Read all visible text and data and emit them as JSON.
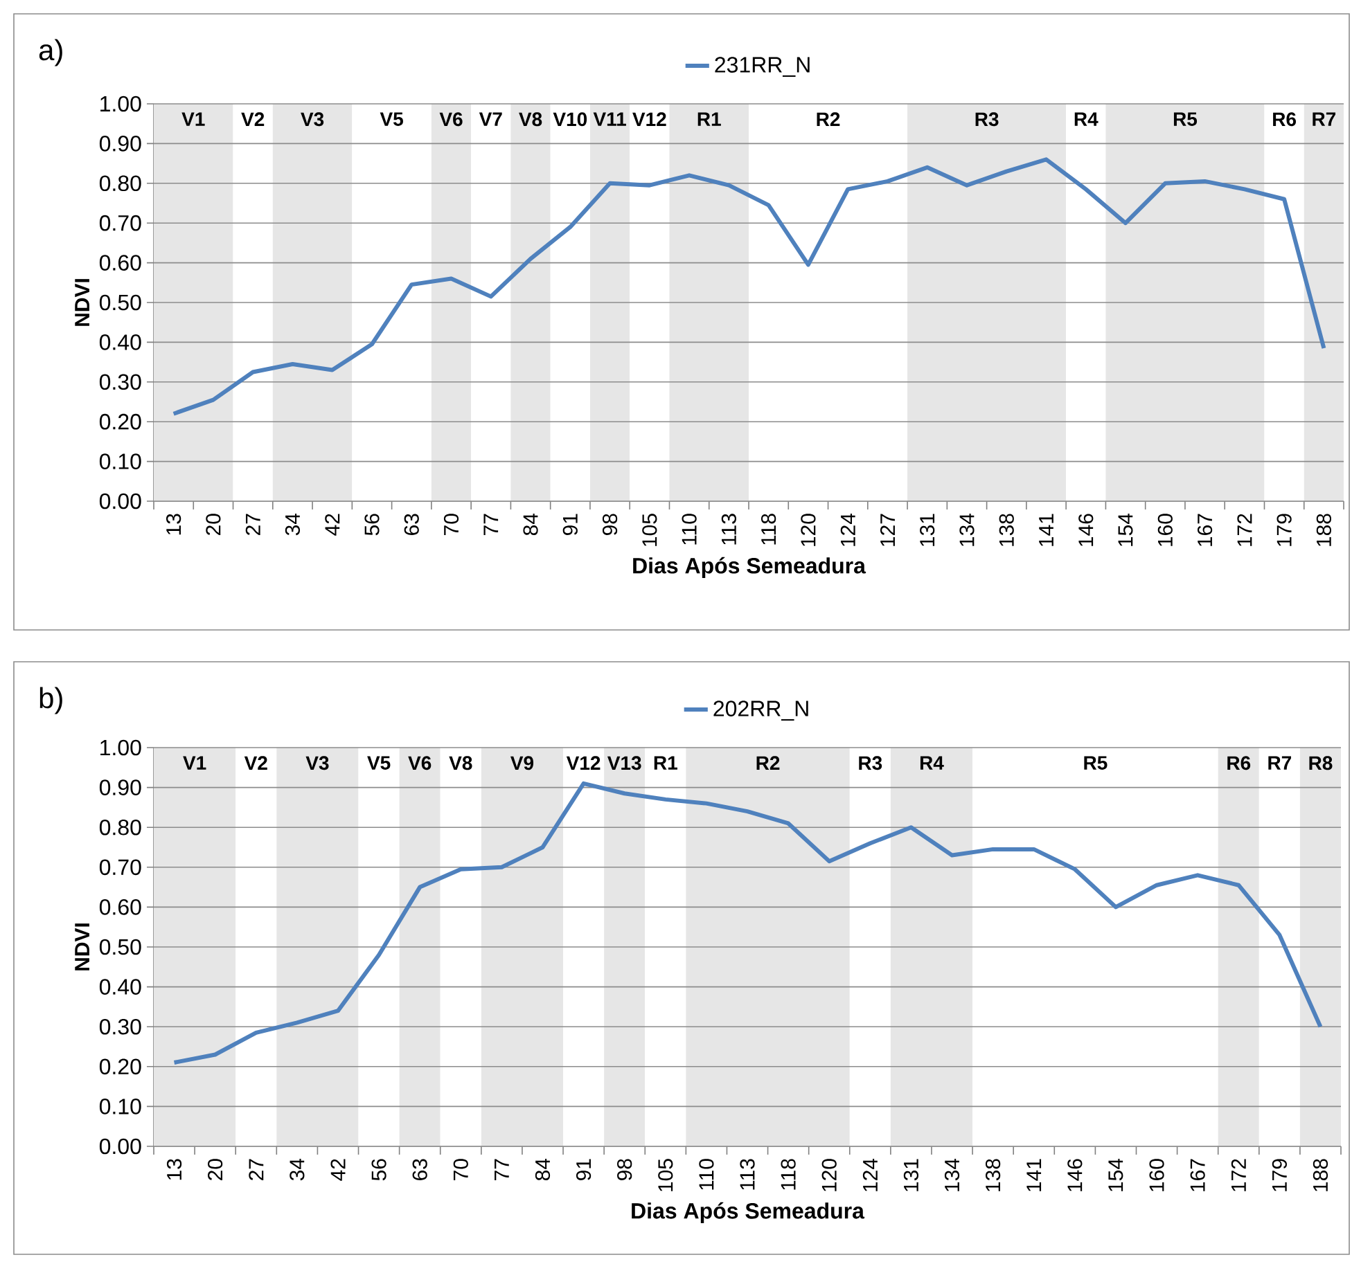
{
  "chart_data": [
    {
      "type": "line",
      "title": "a)",
      "xlabel": "Dias Após Semeadura",
      "ylabel": "NDVI",
      "categories": [
        "13",
        "20",
        "27",
        "34",
        "42",
        "56",
        "63",
        "70",
        "77",
        "84",
        "91",
        "98",
        "105",
        "110",
        "113",
        "118",
        "120",
        "124",
        "127",
        "131",
        "134",
        "138",
        "141",
        "146",
        "154",
        "160",
        "167",
        "172",
        "179",
        "188"
      ],
      "series": [
        {
          "name": "231RR_N",
          "color": "#4f81bd",
          "values": [
            0.22,
            0.255,
            0.325,
            0.345,
            0.33,
            0.395,
            0.545,
            0.56,
            0.515,
            0.61,
            0.69,
            0.8,
            0.795,
            0.82,
            0.795,
            0.745,
            0.595,
            0.785,
            0.805,
            0.84,
            0.795,
            0.83,
            0.86,
            0.785,
            0.7,
            0.8,
            0.805,
            0.785,
            0.76,
            0.385
          ]
        }
      ],
      "ylim": [
        0,
        1
      ],
      "yticks": [
        {
          "value": 0,
          "label": "0.00"
        },
        {
          "value": 0.1,
          "label": "0.10"
        },
        {
          "value": 0.2,
          "label": "0.20"
        },
        {
          "value": 0.3,
          "label": "0.30"
        },
        {
          "value": 0.4,
          "label": "0.40"
        },
        {
          "value": 0.5,
          "label": "0.50"
        },
        {
          "value": 0.6,
          "label": "0.60"
        },
        {
          "value": 0.7,
          "label": "0.70"
        },
        {
          "value": 0.8,
          "label": "0.80"
        },
        {
          "value": 0.9,
          "label": "0.90"
        },
        {
          "value": 1,
          "label": "1.00"
        }
      ],
      "grid": "y",
      "legend": "top",
      "bands": [
        {
          "axis": "x",
          "from": "13",
          "to": "20",
          "label": "V1",
          "color": "#e6e6e6"
        },
        {
          "axis": "x",
          "from": "27",
          "to": "27",
          "label": "V2",
          "color": "#ffffff"
        },
        {
          "axis": "x",
          "from": "34",
          "to": "42",
          "label": "V3",
          "color": "#e6e6e6"
        },
        {
          "axis": "x",
          "from": "56",
          "to": "63",
          "label": "V5",
          "color": "#ffffff"
        },
        {
          "axis": "x",
          "from": "70",
          "to": "70",
          "label": "V6",
          "color": "#e6e6e6"
        },
        {
          "axis": "x",
          "from": "77",
          "to": "77",
          "label": "V7",
          "color": "#ffffff"
        },
        {
          "axis": "x",
          "from": "84",
          "to": "84",
          "label": "V8",
          "color": "#e6e6e6"
        },
        {
          "axis": "x",
          "from": "91",
          "to": "91",
          "label": "V10",
          "color": "#ffffff"
        },
        {
          "axis": "x",
          "from": "98",
          "to": "98",
          "label": "V11",
          "color": "#e6e6e6"
        },
        {
          "axis": "x",
          "from": "105",
          "to": "105",
          "label": "V12",
          "color": "#ffffff"
        },
        {
          "axis": "x",
          "from": "110",
          "to": "113",
          "label": "R1",
          "color": "#e6e6e6"
        },
        {
          "axis": "x",
          "from": "118",
          "to": "127",
          "label": "R2",
          "color": "#ffffff"
        },
        {
          "axis": "x",
          "from": "131",
          "to": "141",
          "label": "R3",
          "color": "#e6e6e6"
        },
        {
          "axis": "x",
          "from": "146",
          "to": "146",
          "label": "R4",
          "color": "#ffffff"
        },
        {
          "axis": "x",
          "from": "154",
          "to": "172",
          "label": "R5",
          "color": "#e6e6e6"
        },
        {
          "axis": "x",
          "from": "179",
          "to": "179",
          "label": "R6",
          "color": "#ffffff"
        },
        {
          "axis": "x",
          "from": "188",
          "to": "188",
          "label": "R7",
          "color": "#e6e6e6"
        }
      ]
    },
    {
      "type": "line",
      "title": "b)",
      "xlabel": "Dias Após Semeadura",
      "ylabel": "NDVI",
      "categories": [
        "13",
        "20",
        "27",
        "34",
        "42",
        "56",
        "63",
        "70",
        "77",
        "84",
        "91",
        "98",
        "105",
        "110",
        "113",
        "118",
        "120",
        "124",
        "131",
        "134",
        "138",
        "141",
        "146",
        "154",
        "160",
        "167",
        "172",
        "179",
        "188"
      ],
      "series": [
        {
          "name": "202RR_N",
          "color": "#4f81bd",
          "values": [
            0.21,
            0.23,
            0.285,
            0.31,
            0.34,
            0.48,
            0.65,
            0.695,
            0.7,
            0.75,
            0.91,
            0.885,
            0.87,
            0.86,
            0.84,
            0.81,
            0.715,
            0.76,
            0.8,
            0.73,
            0.745,
            0.745,
            0.695,
            0.6,
            0.655,
            0.68,
            0.655,
            0.53,
            0.3
          ]
        }
      ],
      "ylim": [
        0,
        1
      ],
      "yticks": [
        {
          "value": 0,
          "label": "0.00"
        },
        {
          "value": 0.1,
          "label": "0.10"
        },
        {
          "value": 0.2,
          "label": "0.20"
        },
        {
          "value": 0.3,
          "label": "0.30"
        },
        {
          "value": 0.4,
          "label": "0.40"
        },
        {
          "value": 0.5,
          "label": "0.50"
        },
        {
          "value": 0.6,
          "label": "0.60"
        },
        {
          "value": 0.7,
          "label": "0.70"
        },
        {
          "value": 0.8,
          "label": "0.80"
        },
        {
          "value": 0.9,
          "label": "0.90"
        },
        {
          "value": 1,
          "label": "1.00"
        }
      ],
      "grid": "y",
      "legend": "top",
      "bands": [
        {
          "axis": "x",
          "from": "13",
          "to": "20",
          "label": "V1",
          "color": "#e6e6e6"
        },
        {
          "axis": "x",
          "from": "27",
          "to": "27",
          "label": "V2",
          "color": "#ffffff"
        },
        {
          "axis": "x",
          "from": "34",
          "to": "42",
          "label": "V3",
          "color": "#e6e6e6"
        },
        {
          "axis": "x",
          "from": "56",
          "to": "56",
          "label": "V5",
          "color": "#ffffff"
        },
        {
          "axis": "x",
          "from": "63",
          "to": "63",
          "label": "V6",
          "color": "#e6e6e6"
        },
        {
          "axis": "x",
          "from": "70",
          "to": "70",
          "label": "V8",
          "color": "#ffffff"
        },
        {
          "axis": "x",
          "from": "77",
          "to": "84",
          "label": "V9",
          "color": "#e6e6e6"
        },
        {
          "axis": "x",
          "from": "91",
          "to": "91",
          "label": "V12",
          "color": "#ffffff"
        },
        {
          "axis": "x",
          "from": "98",
          "to": "98",
          "label": "V13",
          "color": "#e6e6e6"
        },
        {
          "axis": "x",
          "from": "105",
          "to": "105",
          "label": "R1",
          "color": "#ffffff"
        },
        {
          "axis": "x",
          "from": "110",
          "to": "120",
          "label": "R2",
          "color": "#e6e6e6"
        },
        {
          "axis": "x",
          "from": "124",
          "to": "124",
          "label": "R3",
          "color": "#ffffff"
        },
        {
          "axis": "x",
          "from": "131",
          "to": "134",
          "label": "R4",
          "color": "#e6e6e6"
        },
        {
          "axis": "x",
          "from": "138",
          "to": "167",
          "label": "R5",
          "color": "#ffffff"
        },
        {
          "axis": "x",
          "from": "172",
          "to": "172",
          "label": "R6",
          "color": "#e6e6e6"
        },
        {
          "axis": "x",
          "from": "179",
          "to": "179",
          "label": "R7",
          "color": "#ffffff"
        },
        {
          "axis": "x",
          "from": "188",
          "to": "188",
          "label": "R8",
          "color": "#e6e6e6"
        }
      ]
    }
  ]
}
